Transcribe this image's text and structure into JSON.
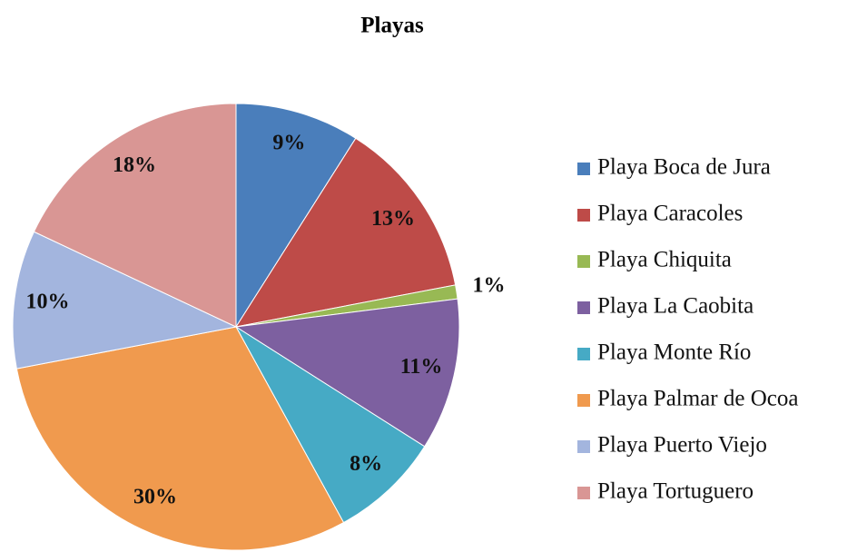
{
  "chart_data": {
    "type": "pie",
    "title": "Playas",
    "categories": [
      "Playa Boca de Jura",
      "Playa Caracoles",
      "Playa Chiquita",
      "Playa La Caobita",
      "Playa Monte Río",
      "Playa Palmar de Ocoa",
      "Playa Puerto Viejo",
      "Playa Tortuguero"
    ],
    "values": [
      9,
      13,
      1,
      11,
      8,
      30,
      10,
      18
    ],
    "value_labels": [
      "9%",
      "13%",
      "1%",
      "11%",
      "8%",
      "30%",
      "10%",
      "18%"
    ],
    "colors": [
      "#4a7ebb",
      "#be4b48",
      "#98b954",
      "#7d60a0",
      "#46aac5",
      "#f09a4e",
      "#a3b5de",
      "#d99694"
    ],
    "legend": "right"
  }
}
